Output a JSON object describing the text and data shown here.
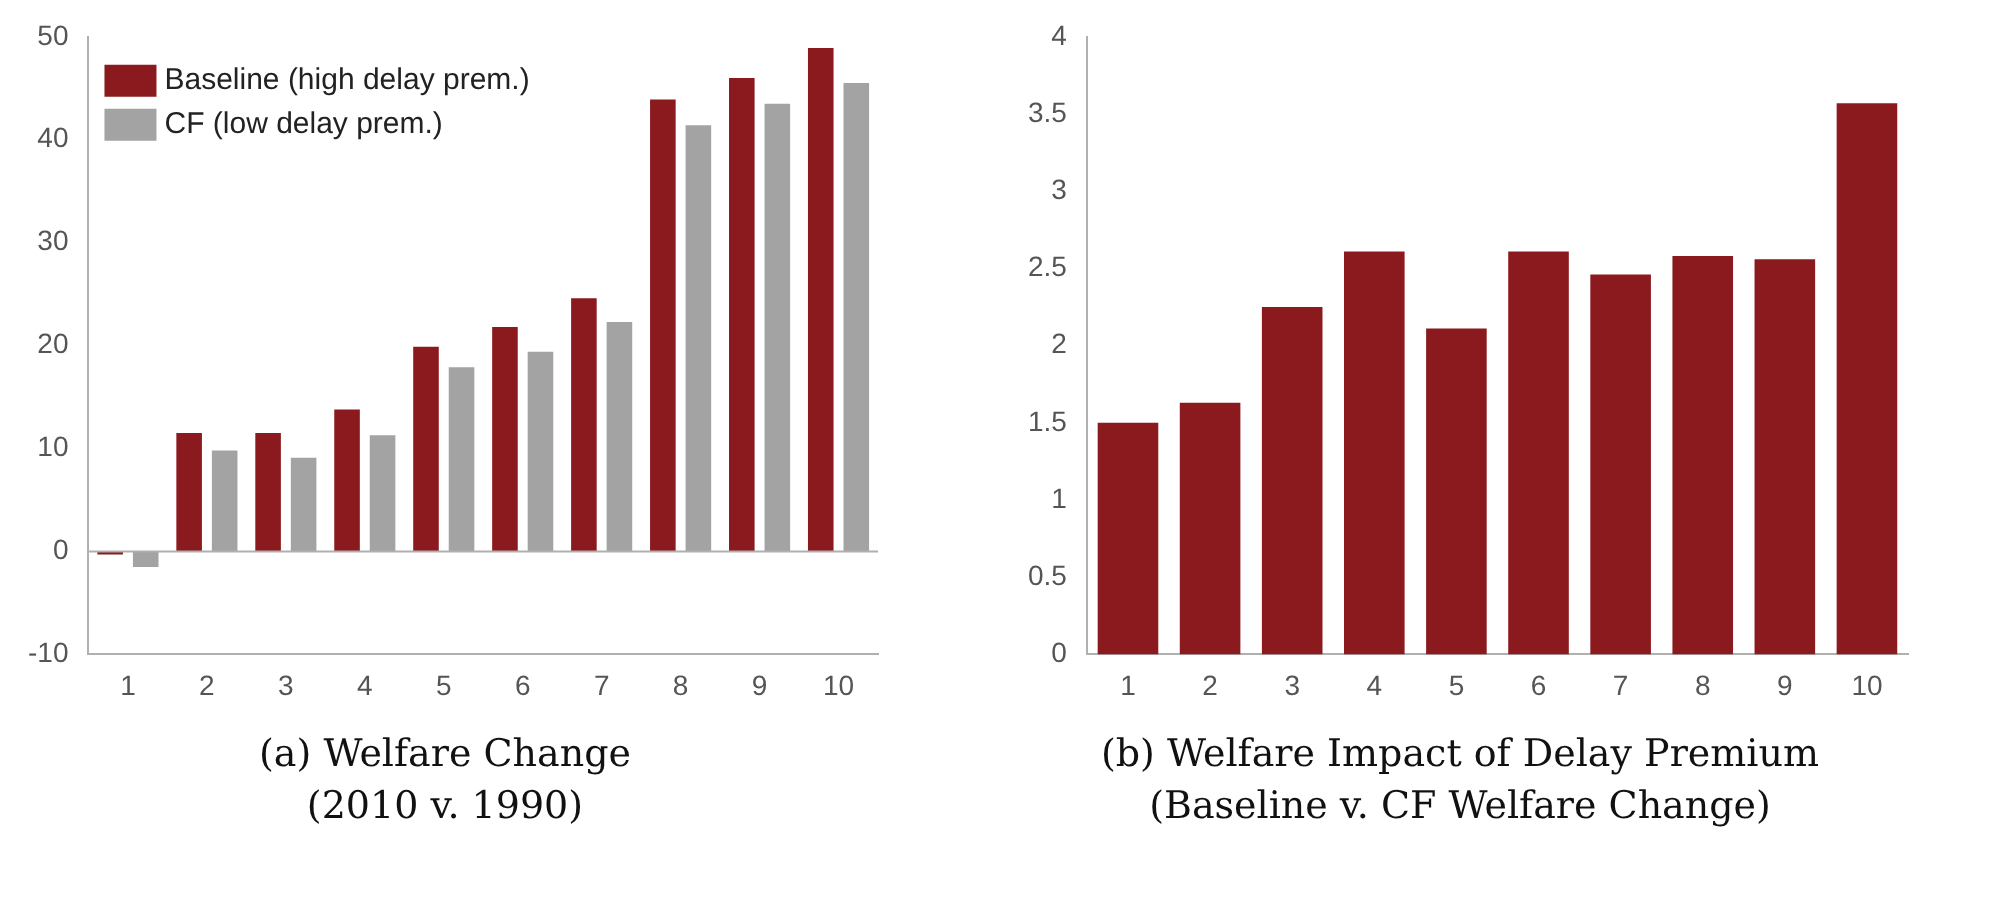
{
  "chart_data": [
    {
      "type": "bar",
      "title": "(a) Welfare Change",
      "subtitle": "(2010 v. 1990)",
      "categories": [
        "1",
        "2",
        "3",
        "4",
        "5",
        "6",
        "7",
        "8",
        "9",
        "10"
      ],
      "series": [
        {
          "name": "Baseline (high delay prem.)",
          "color": "#8b1a1e",
          "values": [
            -0.3,
            11.5,
            11.5,
            13.8,
            19.9,
            21.8,
            24.6,
            43.9,
            46.0,
            48.9
          ]
        },
        {
          "name": "CF (low delay prem.)",
          "color": "#a3a3a3",
          "values": [
            -1.5,
            9.8,
            9.1,
            11.3,
            17.9,
            19.4,
            22.3,
            41.4,
            43.5,
            45.5
          ]
        }
      ],
      "ylim": [
        -10,
        50
      ],
      "yticks": [
        -10,
        0,
        10,
        20,
        30,
        40,
        50
      ],
      "ref_lines": [
        {
          "axis": "y",
          "value": 0,
          "color": "#b0b0b0"
        }
      ],
      "legend": "top left"
    },
    {
      "type": "bar",
      "title": "(b) Welfare Impact of Delay Premium",
      "subtitle": "(Baseline v. CF Welfare Change)",
      "categories": [
        "1",
        "2",
        "3",
        "4",
        "5",
        "6",
        "7",
        "8",
        "9",
        "10"
      ],
      "series": [
        {
          "color": "#8b1a1e",
          "values": [
            1.5,
            1.63,
            2.25,
            2.61,
            2.11,
            2.61,
            2.46,
            2.58,
            2.56,
            3.57
          ]
        }
      ],
      "ylim": [
        0,
        4
      ],
      "yticks": [
        0,
        0.5,
        1,
        1.5,
        2,
        2.5,
        3,
        3.5,
        4
      ]
    }
  ]
}
